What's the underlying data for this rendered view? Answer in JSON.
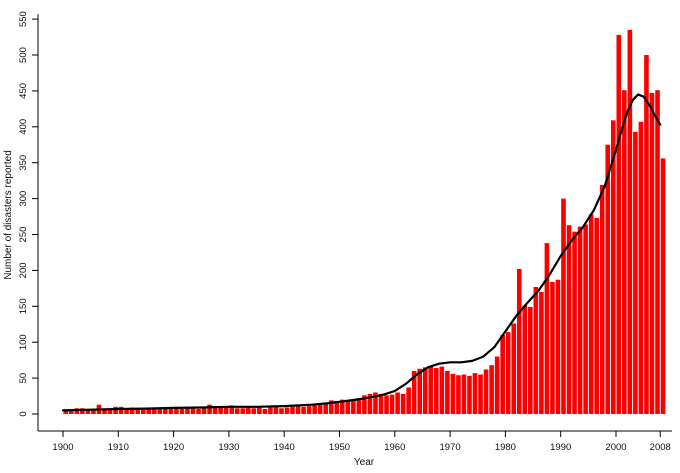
{
  "figure": {
    "background": "#ffffff"
  },
  "chart_data": {
    "type": "bar",
    "title": "",
    "xlabel": "Year",
    "ylabel": "Number of disasters reported",
    "bar_color": "#fb0000",
    "trend_color": "#000000",
    "axis_color": "#000000",
    "xlim": [
      1900,
      2009
    ],
    "ylim": [
      0,
      550
    ],
    "grid": "off",
    "legend": "none",
    "x_ticks": [
      1900,
      1910,
      1920,
      1930,
      1940,
      1950,
      1960,
      1970,
      1980,
      1990,
      2000,
      2008
    ],
    "y_ticks": [
      0,
      50,
      100,
      150,
      200,
      250,
      300,
      350,
      400,
      450,
      500,
      550
    ],
    "first_year": 1900,
    "categories_note": "one bar per year 1900-2008",
    "values": [
      5,
      4,
      8,
      8,
      6,
      5,
      13,
      7,
      8,
      10,
      10,
      8,
      9,
      6,
      6,
      7,
      8,
      9,
      7,
      7,
      9,
      7,
      9,
      10,
      7,
      10,
      13,
      11,
      9,
      11,
      12,
      8,
      8,
      9,
      8,
      9,
      7,
      9,
      10,
      8,
      9,
      10,
      13,
      10,
      11,
      12,
      13,
      15,
      19,
      18,
      20,
      18,
      19,
      22,
      26,
      28,
      30,
      28,
      26,
      27,
      30,
      28,
      37,
      60,
      63,
      65,
      67,
      64,
      66,
      60,
      56,
      54,
      55,
      53,
      57,
      55,
      62,
      68,
      80,
      110,
      114,
      126,
      202,
      151,
      149,
      177,
      170,
      238,
      184,
      187,
      300,
      263,
      254,
      261,
      264,
      278,
      273,
      319,
      375,
      409,
      528,
      451,
      535,
      393,
      407,
      500,
      447,
      451,
      356
    ],
    "series": [
      {
        "name": "disasters-per-year-bars",
        "type": "bar",
        "color": "#fb0000"
      },
      {
        "name": "smoothed-trend-line",
        "type": "line",
        "color": "#000000",
        "points": [
          [
            1900,
            5
          ],
          [
            1905,
            6
          ],
          [
            1910,
            7
          ],
          [
            1915,
            7.5
          ],
          [
            1920,
            8.5
          ],
          [
            1925,
            9
          ],
          [
            1930,
            10
          ],
          [
            1935,
            10
          ],
          [
            1940,
            11
          ],
          [
            1945,
            13
          ],
          [
            1948,
            15
          ],
          [
            1950,
            17
          ],
          [
            1952,
            19
          ],
          [
            1954,
            21
          ],
          [
            1956,
            24
          ],
          [
            1958,
            27
          ],
          [
            1960,
            32
          ],
          [
            1962,
            42
          ],
          [
            1964,
            55
          ],
          [
            1966,
            65
          ],
          [
            1968,
            70
          ],
          [
            1970,
            72
          ],
          [
            1972,
            72
          ],
          [
            1974,
            74
          ],
          [
            1976,
            80
          ],
          [
            1978,
            93
          ],
          [
            1980,
            115
          ],
          [
            1982,
            137
          ],
          [
            1984,
            155
          ],
          [
            1986,
            172
          ],
          [
            1988,
            194
          ],
          [
            1990,
            220
          ],
          [
            1992,
            242
          ],
          [
            1994,
            260
          ],
          [
            1996,
            284
          ],
          [
            1998,
            318
          ],
          [
            2000,
            368
          ],
          [
            2001,
            395
          ],
          [
            2002,
            420
          ],
          [
            2003,
            437
          ],
          [
            2004,
            445
          ],
          [
            2005,
            442
          ],
          [
            2006,
            431
          ],
          [
            2007,
            416
          ],
          [
            2008,
            403
          ]
        ]
      }
    ]
  }
}
